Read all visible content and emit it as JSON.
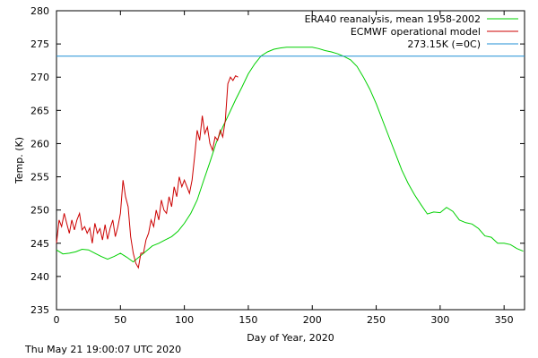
{
  "chart_data": {
    "type": "line",
    "title": "",
    "xlabel": "Day of Year, 2020",
    "ylabel": "Temp. (K)",
    "xlim": [
      0,
      366
    ],
    "ylim": [
      235,
      280
    ],
    "xticks": [
      0,
      50,
      100,
      150,
      200,
      250,
      300,
      350
    ],
    "yticks": [
      235,
      240,
      245,
      250,
      255,
      260,
      265,
      270,
      275,
      280
    ],
    "grid": false,
    "legend_position": "top-right",
    "series": [
      {
        "name": "ERA40 reanalysis, mean 1958-2002",
        "color": "#00d000",
        "x": [
          0,
          5,
          10,
          15,
          20,
          25,
          30,
          35,
          40,
          45,
          50,
          55,
          60,
          65,
          70,
          75,
          80,
          85,
          90,
          95,
          100,
          105,
          110,
          115,
          120,
          125,
          130,
          135,
          140,
          145,
          150,
          155,
          160,
          165,
          170,
          175,
          180,
          185,
          190,
          195,
          200,
          205,
          210,
          215,
          220,
          225,
          230,
          235,
          240,
          245,
          250,
          255,
          260,
          265,
          270,
          275,
          280,
          285,
          290,
          295,
          300,
          305,
          310,
          315,
          320,
          325,
          330,
          335,
          340,
          345,
          350,
          355,
          360,
          365
        ],
        "y": [
          244,
          243.4,
          243.5,
          243.7,
          244.1,
          244,
          243.5,
          243,
          242.6,
          243,
          243.5,
          242.9,
          242.2,
          243,
          243.8,
          244.6,
          245,
          245.5,
          246,
          246.8,
          248,
          249.5,
          251.5,
          254.4,
          257.2,
          260.2,
          262.5,
          264.5,
          266.6,
          268.5,
          270.5,
          272,
          273.2,
          273.8,
          274.2,
          274.4,
          274.5,
          274.5,
          274.5,
          274.5,
          274.5,
          274.3,
          274,
          273.8,
          273.5,
          273.1,
          272.6,
          271.6,
          270,
          268.2,
          266,
          263.5,
          261,
          258.5,
          256,
          254,
          252.3,
          250.8,
          249.4,
          249.7,
          249.6,
          250.4,
          249.8,
          248.5,
          248.1,
          247.9,
          247.2,
          246.1,
          245.9,
          245,
          245,
          244.8,
          244.2,
          243.8
        ]
      },
      {
        "name": "ECMWF operational model",
        "color": "#cc0000",
        "x": [
          0,
          2,
          4,
          6,
          8,
          10,
          12,
          14,
          16,
          18,
          20,
          22,
          24,
          26,
          28,
          30,
          32,
          34,
          36,
          38,
          40,
          42,
          44,
          46,
          48,
          50,
          52,
          54,
          56,
          58,
          60,
          62,
          64,
          66,
          68,
          70,
          72,
          74,
          76,
          78,
          80,
          82,
          84,
          86,
          88,
          90,
          92,
          94,
          96,
          98,
          100,
          102,
          104,
          106,
          108,
          110,
          112,
          114,
          116,
          118,
          120,
          122,
          124,
          126,
          128,
          130,
          132,
          134,
          136,
          138,
          140,
          142
        ],
        "y": [
          245,
          248.5,
          247.5,
          249.5,
          248,
          246.5,
          248.5,
          247,
          248.5,
          249.5,
          247,
          247.5,
          246.5,
          247.3,
          245,
          248,
          246.5,
          247.2,
          245.5,
          247.8,
          245.6,
          247.3,
          248.5,
          246,
          247.5,
          249.5,
          254.5,
          252,
          250.5,
          246,
          243.5,
          242,
          241.3,
          243.5,
          243.5,
          245.5,
          246.5,
          248.5,
          247.5,
          250,
          248.5,
          251.5,
          250,
          249.5,
          252,
          250.5,
          253.5,
          252,
          255,
          253.5,
          254.5,
          253.5,
          252.5,
          254.5,
          258,
          262,
          260.5,
          264.2,
          261.5,
          262.5,
          260,
          259,
          261,
          260.5,
          262,
          261,
          263.5,
          269,
          270,
          269.5,
          270.2,
          270
        ]
      },
      {
        "name": "273.15K (=0C)",
        "color": "#1f8fd6",
        "x": [
          0,
          366
        ],
        "y": [
          273.15,
          273.15
        ]
      }
    ]
  },
  "footer": {
    "timestamp": "Thu May 21 19:00:07 UTC 2020"
  }
}
